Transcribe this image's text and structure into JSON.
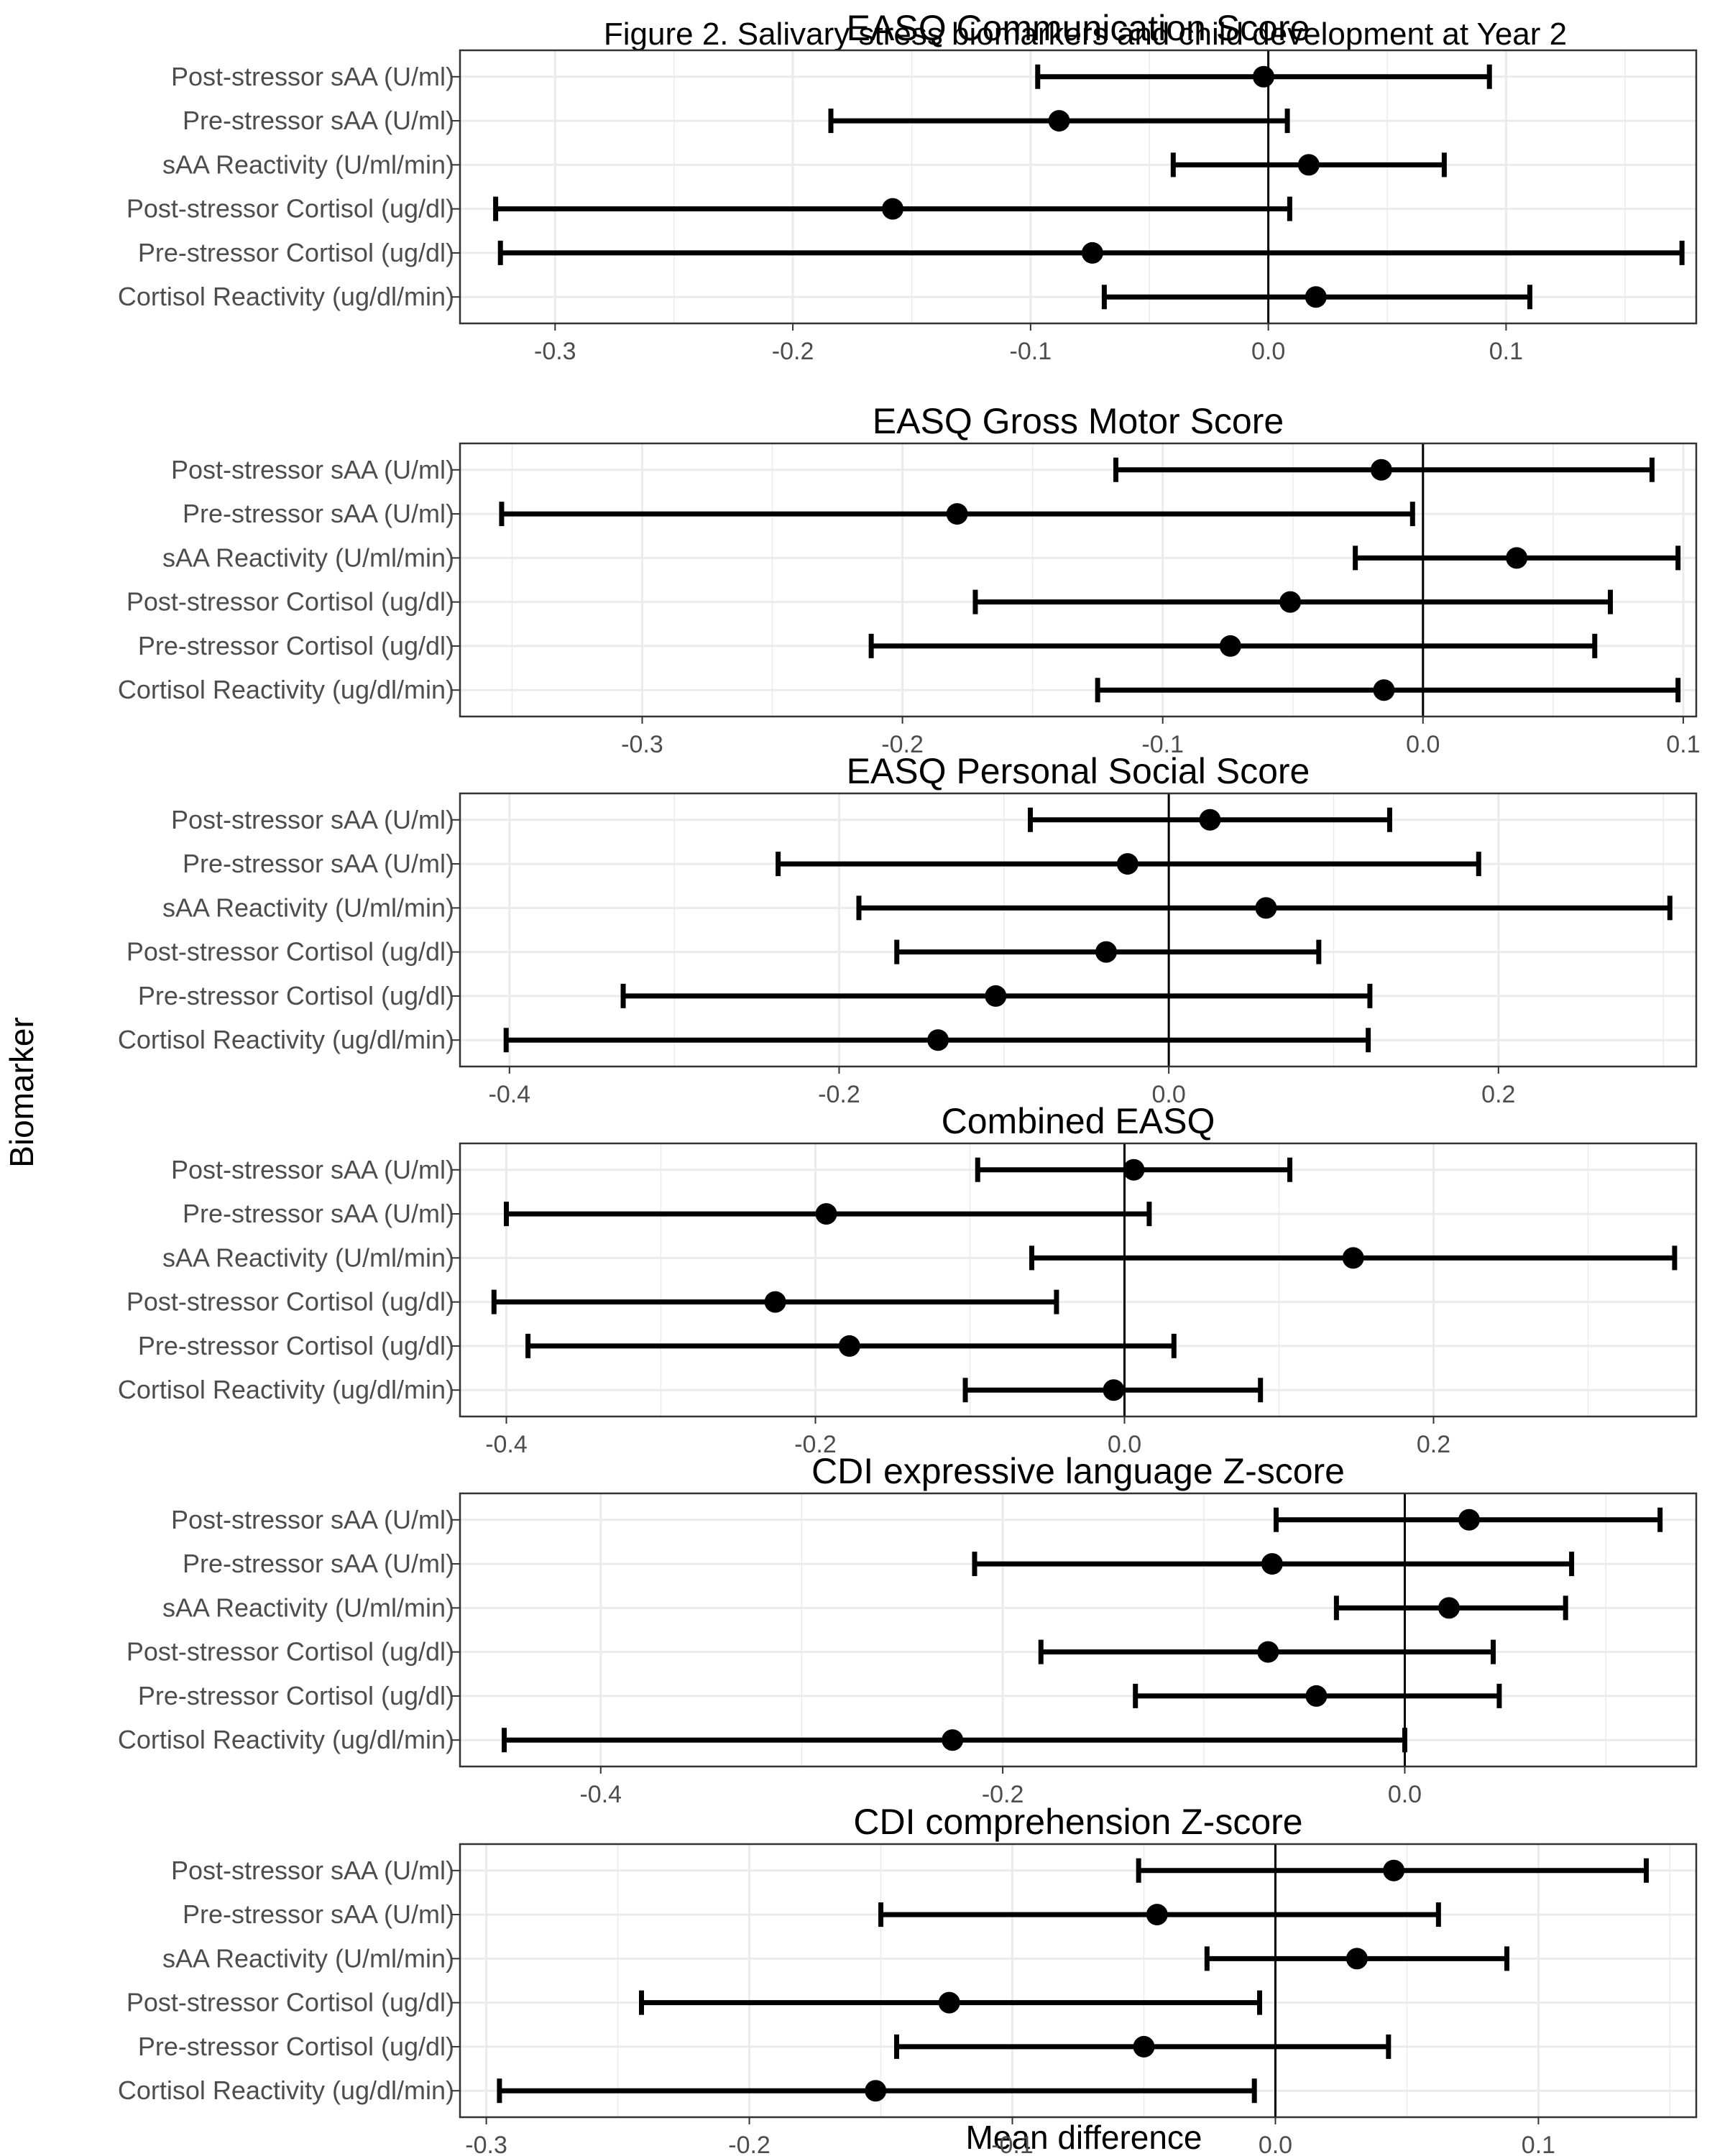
{
  "figure_title": "Figure 2. Salivary stress biomarkers and child development at Year 2",
  "ylabel": "Biomarker",
  "xlabel": "Mean difference",
  "chart_data": [
    {
      "type": "forest",
      "title": "EASQ Communication Score",
      "categories": [
        "Post-stressor sAA (U/ml)",
        "Pre-stressor sAA (U/ml)",
        "sAA Reactivity (U/ml/min)",
        "Post-stressor Cortisol (ug/dl)",
        "Pre-stressor Cortisol (ug/dl)",
        "Cortisol Reactivity (ug/dl/min)"
      ],
      "estimate": [
        -0.002,
        -0.088,
        0.017,
        -0.158,
        -0.074,
        0.02
      ],
      "lower": [
        -0.097,
        -0.184,
        -0.04,
        -0.325,
        -0.323,
        -0.069
      ],
      "upper": [
        0.093,
        0.008,
        0.074,
        0.009,
        0.174,
        0.11
      ],
      "xlim": [
        -0.34,
        0.18
      ],
      "xticks": [
        -0.3,
        -0.2,
        -0.1,
        0.0,
        0.1
      ],
      "xtick_labels": [
        "-0.3",
        "-0.2",
        "-0.1",
        "0.0",
        "0.1"
      ],
      "grid": true
    },
    {
      "type": "forest",
      "title": "EASQ Gross Motor Score",
      "categories": [
        "Post-stressor sAA (U/ml)",
        "Pre-stressor sAA (U/ml)",
        "sAA Reactivity (U/ml/min)",
        "Post-stressor Cortisol (ug/dl)",
        "Pre-stressor Cortisol (ug/dl)",
        "Cortisol Reactivity (ug/dl/min)"
      ],
      "estimate": [
        -0.016,
        -0.179,
        0.036,
        -0.051,
        -0.074,
        -0.015
      ],
      "lower": [
        -0.118,
        -0.354,
        -0.026,
        -0.172,
        -0.212,
        -0.125
      ],
      "upper": [
        0.088,
        -0.004,
        0.098,
        0.072,
        0.066,
        0.098
      ],
      "xlim": [
        -0.37,
        0.105
      ],
      "xticks": [
        -0.3,
        -0.2,
        -0.1,
        0.0,
        0.1
      ],
      "xtick_labels": [
        "-0.3",
        "-0.2",
        "-0.1",
        "0.0",
        "0.1"
      ],
      "grid": true
    },
    {
      "type": "forest",
      "title": "EASQ Personal Social Score",
      "categories": [
        "Post-stressor sAA (U/ml)",
        "Pre-stressor sAA (U/ml)",
        "sAA Reactivity (U/ml/min)",
        "Post-stressor Cortisol (ug/dl)",
        "Pre-stressor Cortisol (ug/dl)",
        "Cortisol Reactivity (ug/dl/min)"
      ],
      "estimate": [
        0.025,
        -0.025,
        0.059,
        -0.038,
        -0.105,
        -0.14
      ],
      "lower": [
        -0.084,
        -0.237,
        -0.188,
        -0.165,
        -0.331,
        -0.402
      ],
      "upper": [
        0.134,
        0.188,
        0.304,
        0.091,
        0.122,
        0.121
      ],
      "xlim": [
        -0.43,
        0.32
      ],
      "xticks": [
        -0.4,
        -0.2,
        0.0,
        0.2
      ],
      "xtick_labels": [
        "-0.4",
        "-0.2",
        "0.0",
        "0.2"
      ],
      "grid": true
    },
    {
      "type": "forest",
      "title": "Combined EASQ",
      "categories": [
        "Post-stressor sAA (U/ml)",
        "Pre-stressor sAA (U/ml)",
        "sAA Reactivity (U/ml/min)",
        "Post-stressor Cortisol (ug/dl)",
        "Pre-stressor Cortisol (ug/dl)",
        "Cortisol Reactivity (ug/dl/min)"
      ],
      "estimate": [
        0.006,
        -0.193,
        0.148,
        -0.226,
        -0.178,
        -0.007
      ],
      "lower": [
        -0.095,
        -0.4,
        -0.06,
        -0.408,
        -0.386,
        -0.103
      ],
      "upper": [
        0.107,
        0.016,
        0.356,
        -0.044,
        0.032,
        0.088
      ],
      "xlim": [
        -0.43,
        0.37
      ],
      "xticks": [
        -0.4,
        -0.2,
        0.0,
        0.2
      ],
      "xtick_labels": [
        "-0.4",
        "-0.2",
        "0.0",
        "0.2"
      ],
      "grid": true
    },
    {
      "type": "forest",
      "title": "CDI expressive language Z-score",
      "categories": [
        "Post-stressor sAA (U/ml)",
        "Pre-stressor sAA (U/ml)",
        "sAA Reactivity (U/ml/min)",
        "Post-stressor Cortisol (ug/dl)",
        "Pre-stressor Cortisol (ug/dl)",
        "Cortisol Reactivity (ug/dl/min)"
      ],
      "estimate": [
        0.032,
        -0.066,
        0.022,
        -0.068,
        -0.044,
        -0.225
      ],
      "lower": [
        -0.064,
        -0.214,
        -0.034,
        -0.181,
        -0.134,
        -0.448
      ],
      "upper": [
        0.127,
        0.083,
        0.08,
        0.044,
        0.047,
        0.0
      ],
      "xlim": [
        -0.47,
        0.145
      ],
      "xticks": [
        -0.4,
        -0.2,
        0.0
      ],
      "xtick_labels": [
        "-0.4",
        "-0.2",
        "0.0"
      ],
      "grid": true
    },
    {
      "type": "forest",
      "title": "CDI comprehension Z-score",
      "categories": [
        "Post-stressor sAA (U/ml)",
        "Pre-stressor sAA (U/ml)",
        "sAA Reactivity (U/ml/min)",
        "Post-stressor Cortisol (ug/dl)",
        "Pre-stressor Cortisol (ug/dl)",
        "Cortisol Reactivity (ug/dl/min)"
      ],
      "estimate": [
        0.045,
        -0.045,
        0.031,
        -0.124,
        -0.05,
        -0.152
      ],
      "lower": [
        -0.052,
        -0.15,
        -0.026,
        -0.241,
        -0.144,
        -0.295
      ],
      "upper": [
        0.141,
        0.062,
        0.088,
        -0.006,
        0.043,
        -0.008
      ],
      "xlim": [
        -0.31,
        0.16
      ],
      "xticks": [
        -0.3,
        -0.2,
        -0.1,
        0.0,
        0.1
      ],
      "xtick_labels": [
        "-0.3",
        "-0.2",
        "-0.1",
        "0.0",
        "0.1"
      ],
      "grid": true
    }
  ]
}
